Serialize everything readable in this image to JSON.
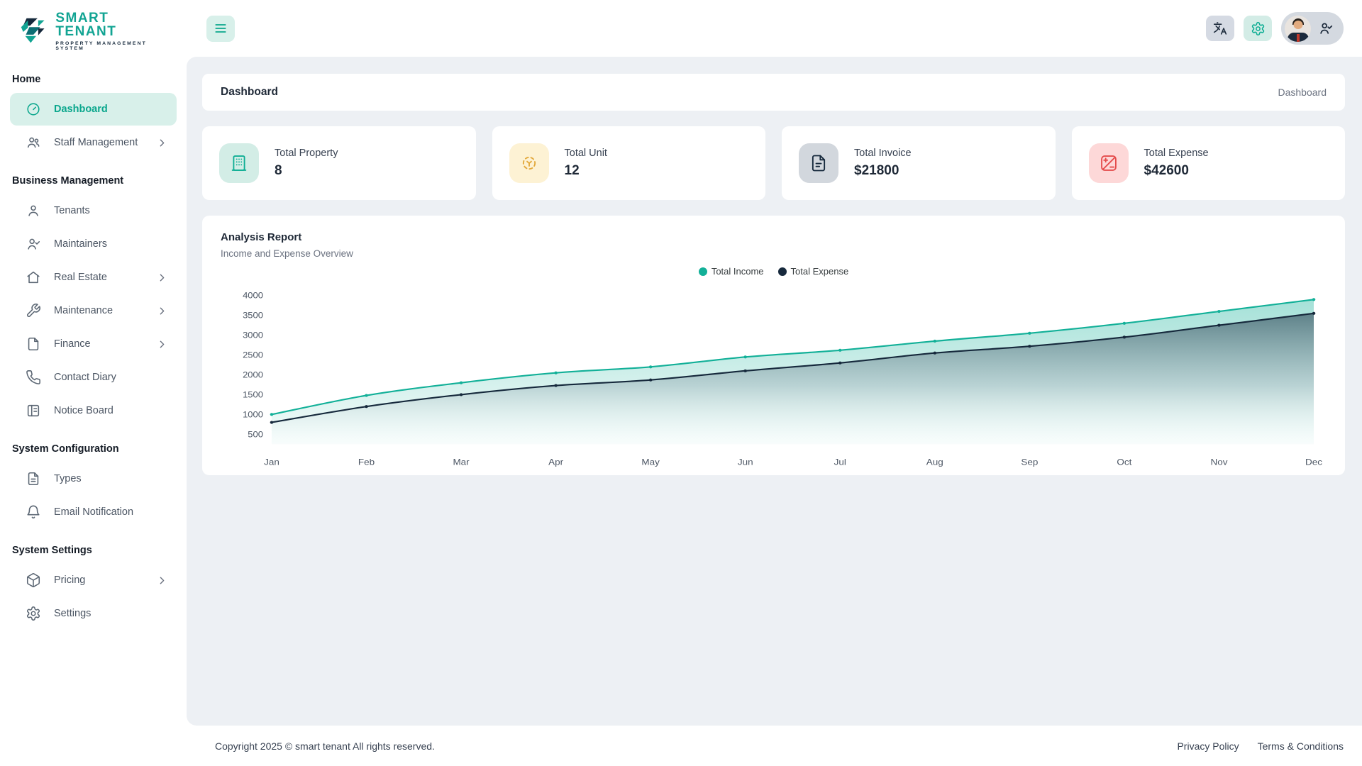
{
  "brand": {
    "name": "SMART TENANT",
    "tagline": "PROPERTY MANAGEMENT SYSTEM"
  },
  "header": {
    "breadcrumb": "Dashboard"
  },
  "page": {
    "title": "Dashboard"
  },
  "sidebar": {
    "sections": [
      {
        "label": "Home",
        "items": [
          {
            "label": "Dashboard",
            "icon": "dashboard-icon",
            "active": true
          },
          {
            "label": "Staff Management",
            "icon": "users-icon",
            "expandable": true
          }
        ]
      },
      {
        "label": "Business Management",
        "items": [
          {
            "label": "Tenants",
            "icon": "person-icon"
          },
          {
            "label": "Maintainers",
            "icon": "person-check-icon"
          },
          {
            "label": "Real Estate",
            "icon": "home-icon",
            "expandable": true
          },
          {
            "label": "Maintenance",
            "icon": "wrench-icon",
            "expandable": true
          },
          {
            "label": "Finance",
            "icon": "file-icon",
            "expandable": true
          },
          {
            "label": "Contact Diary",
            "icon": "phone-icon"
          },
          {
            "label": "Notice Board",
            "icon": "board-icon"
          }
        ]
      },
      {
        "label": "System Configuration",
        "items": [
          {
            "label": "Types",
            "icon": "file-text-icon"
          },
          {
            "label": "Email Notification",
            "icon": "bell-icon"
          }
        ]
      },
      {
        "label": "System Settings",
        "items": [
          {
            "label": "Pricing",
            "icon": "package-icon",
            "expandable": true
          },
          {
            "label": "Settings",
            "icon": "gear-icon"
          }
        ]
      }
    ]
  },
  "stats": [
    {
      "label": "Total Property",
      "value": "8",
      "icon": "building-icon",
      "theme": "teal"
    },
    {
      "label": "Total Unit",
      "value": "12",
      "icon": "unit-icon",
      "theme": "amber"
    },
    {
      "label": "Total Invoice",
      "value": "$21800",
      "icon": "invoice-icon",
      "theme": "slate"
    },
    {
      "label": "Total Expense",
      "value": "$42600",
      "icon": "expense-icon",
      "theme": "red"
    }
  ],
  "chart_data": {
    "type": "area",
    "title": "Analysis Report",
    "subtitle": "Income and Expense Overview",
    "categories": [
      "Jan",
      "Feb",
      "Mar",
      "Apr",
      "May",
      "Jun",
      "Jul",
      "Aug",
      "Sep",
      "Oct",
      "Nov",
      "Dec"
    ],
    "series": [
      {
        "name": "Total Income",
        "color": "#12b098",
        "values": [
          1000,
          1480,
          1800,
          2050,
          2200,
          2450,
          2620,
          2850,
          3050,
          3300,
          3600,
          3900
        ]
      },
      {
        "name": "Total Expense",
        "color": "#16293c",
        "values": [
          800,
          1200,
          1500,
          1730,
          1870,
          2100,
          2300,
          2550,
          2720,
          2950,
          3250,
          3550
        ]
      }
    ],
    "yticks": [
      500,
      1000,
      1500,
      2000,
      2500,
      3000,
      3500,
      4000
    ],
    "ylim": [
      250,
      4150
    ],
    "legend_position": "top",
    "grid": false
  },
  "colors": {
    "accent": "#0fae94",
    "accent_bg": "#d8f0ea",
    "navy": "#16293c",
    "content_bg": "#edf0f4"
  },
  "footer": {
    "copyright": "Copyright 2025 © smart tenant All rights reserved.",
    "links": [
      "Privacy Policy",
      "Terms & Conditions"
    ]
  }
}
